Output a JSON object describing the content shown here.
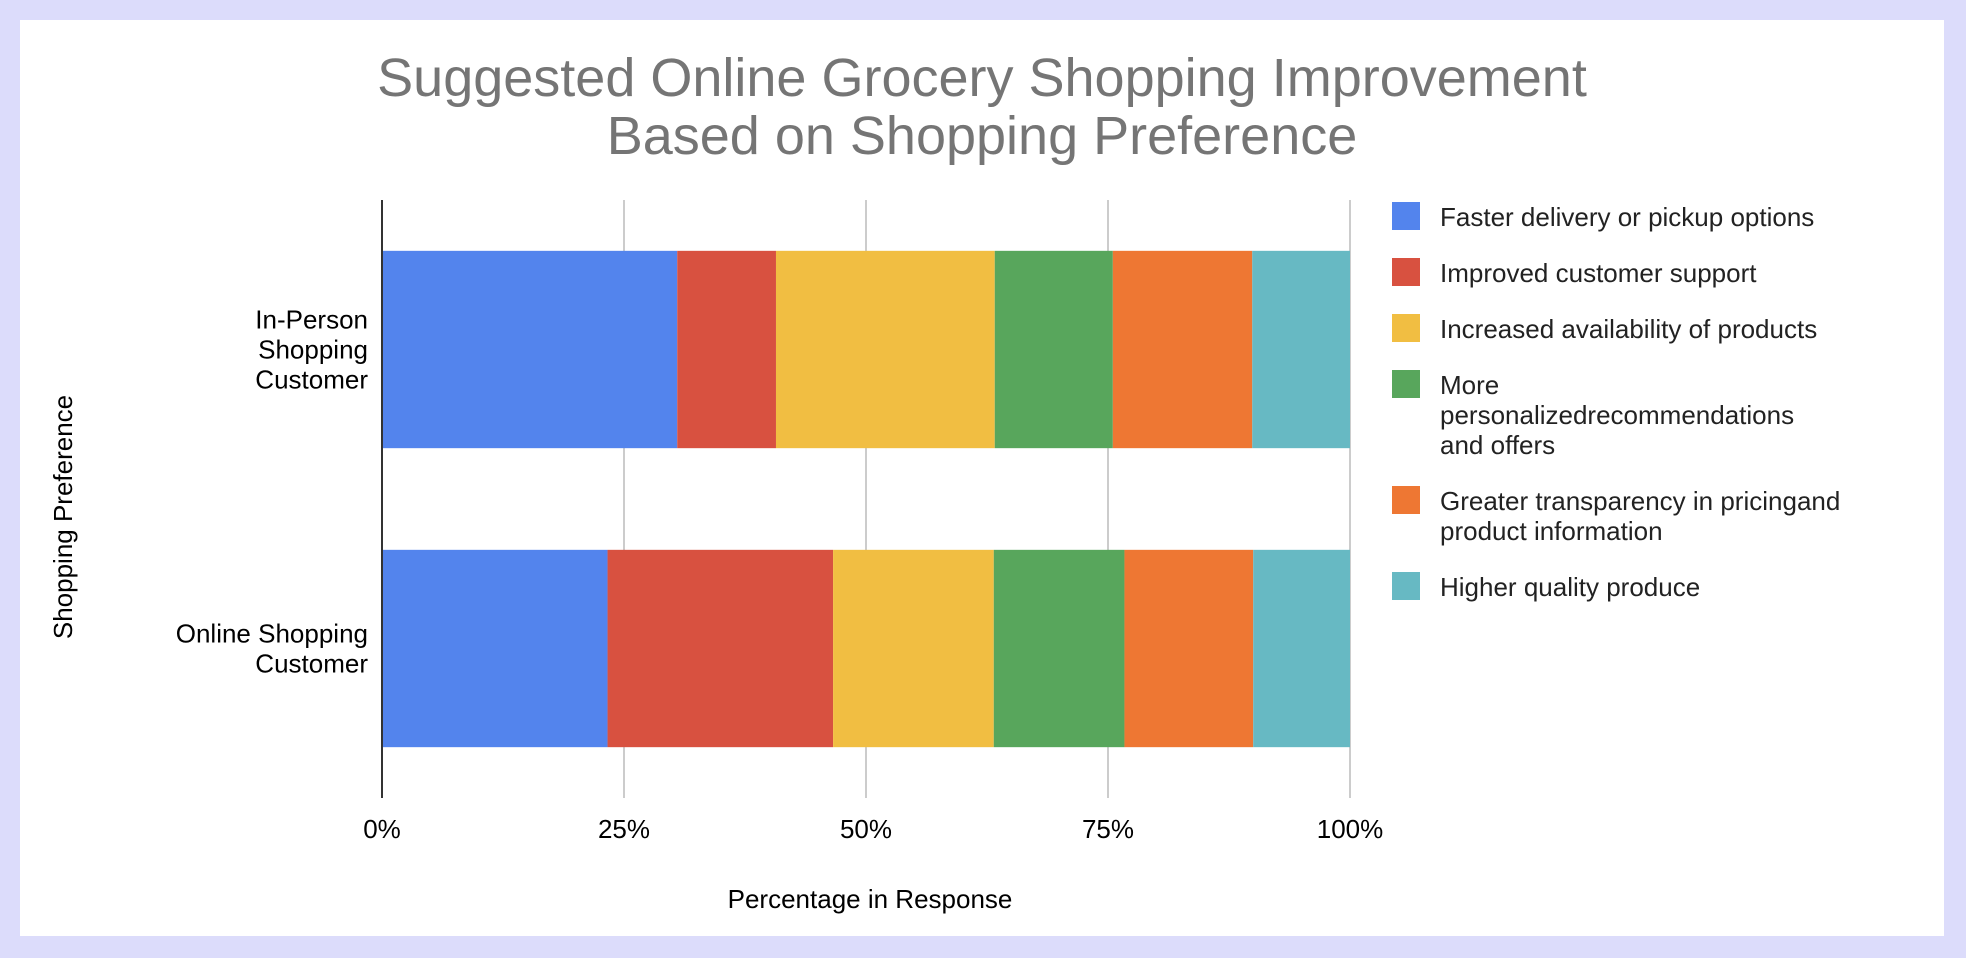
{
  "chart_data": {
    "type": "bar",
    "orientation": "horizontal",
    "stacked": "percent",
    "title": [
      "Suggested Online Grocery Shopping Improvement",
      "Based on Shopping Preference"
    ],
    "xlabel": "Percentage in Response",
    "ylabel": "Shopping Preference",
    "xlim": [
      0,
      100
    ],
    "x_ticks": [
      0,
      25,
      50,
      75,
      100
    ],
    "x_tick_labels": [
      "0%",
      "25%",
      "50%",
      "75%",
      "100%"
    ],
    "grid": true,
    "legend_position": "right",
    "categories": [
      [
        "In-Person",
        "Shopping",
        "Customer"
      ],
      [
        "Online Shopping",
        "Customer"
      ]
    ],
    "series": [
      {
        "name": "Faster delivery or pickup options",
        "legend_lines": [
          "Faster delivery or pickup options"
        ],
        "color": "#5384ed",
        "values": [
          30.5,
          23.3
        ]
      },
      {
        "name": "Improved customer support",
        "legend_lines": [
          "Improved customer support"
        ],
        "color": "#d85140",
        "values": [
          10.2,
          23.3
        ]
      },
      {
        "name": "Increased availability of products",
        "legend_lines": [
          "Increased availability of products"
        ],
        "color": "#f1be42",
        "values": [
          22.6,
          16.6
        ]
      },
      {
        "name": "More personalizedrecommendations and offers",
        "legend_lines": [
          "More",
          "personalizedrecommendations",
          "and offers"
        ],
        "color": "#58a65c",
        "values": [
          12.2,
          13.5
        ]
      },
      {
        "name": "Greater transparency in pricingand product information",
        "legend_lines": [
          "Greater transparency in pricingand",
          "product information"
        ],
        "color": "#ee7733",
        "values": [
          14.4,
          13.3
        ]
      },
      {
        "name": "Higher quality produce",
        "legend_lines": [
          "Higher quality produce"
        ],
        "color": "#67b9c3",
        "values": [
          10.1,
          10.0
        ]
      }
    ]
  }
}
